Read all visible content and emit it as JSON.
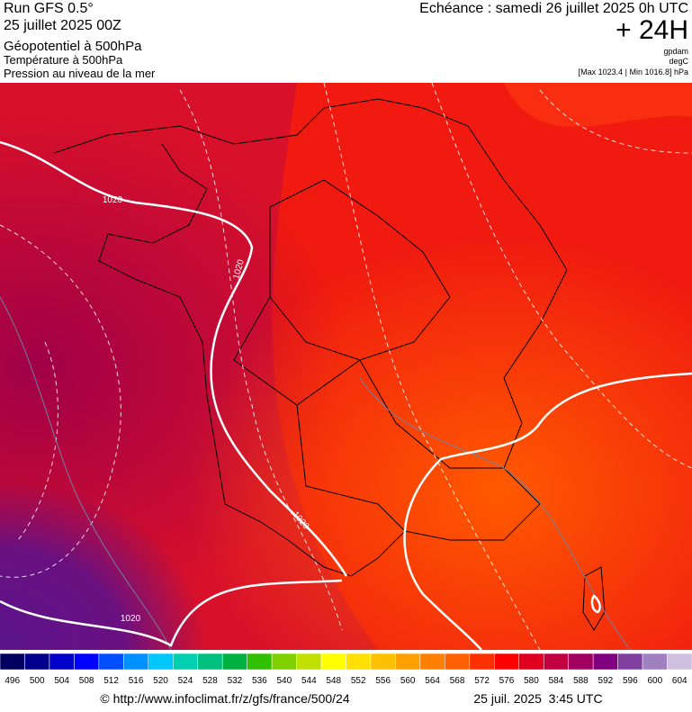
{
  "header": {
    "run": "Run GFS 0.5°",
    "date": "25 juillet 2025 00Z",
    "field1": "Géopotentiel à 500hPa",
    "field2": "Température à 500hPa",
    "field3": "Pression au niveau de la mer",
    "echeance": "Echéance : samedi 26 juillet 2025 0h UTC",
    "lead": "+ 24H",
    "unit1": "gpdam",
    "unit2": "degC",
    "range": "[Max 1023.4 | Min 1016.8] hPa"
  },
  "map": {
    "isobar_labels": [
      "1020",
      "1020",
      "1020",
      "1020"
    ]
  },
  "scale": {
    "labels": [
      "496",
      "500",
      "504",
      "508",
      "512",
      "516",
      "520",
      "524",
      "528",
      "532",
      "536",
      "540",
      "544",
      "548",
      "552",
      "556",
      "560",
      "564",
      "568",
      "572",
      "576",
      "580",
      "584",
      "588",
      "592",
      "596",
      "600",
      "604"
    ],
    "colors": [
      "#000060",
      "#00008c",
      "#0000c8",
      "#0000ff",
      "#0050ff",
      "#0090ff",
      "#00c8ff",
      "#00d0b0",
      "#00c080",
      "#00b040",
      "#30c000",
      "#80d000",
      "#c0e000",
      "#ffff00",
      "#ffe000",
      "#ffc000",
      "#ffa000",
      "#ff8000",
      "#ff6000",
      "#ff3000",
      "#ff0000",
      "#e00020",
      "#c00040",
      "#a00060",
      "#800080",
      "#8040a0",
      "#a080c0",
      "#d0c0e0"
    ]
  },
  "footer": {
    "url": "© http://www.infoclimat.fr/z/gfs/france/500/24",
    "time": "25 juil. 2025  3:45 UTC"
  }
}
